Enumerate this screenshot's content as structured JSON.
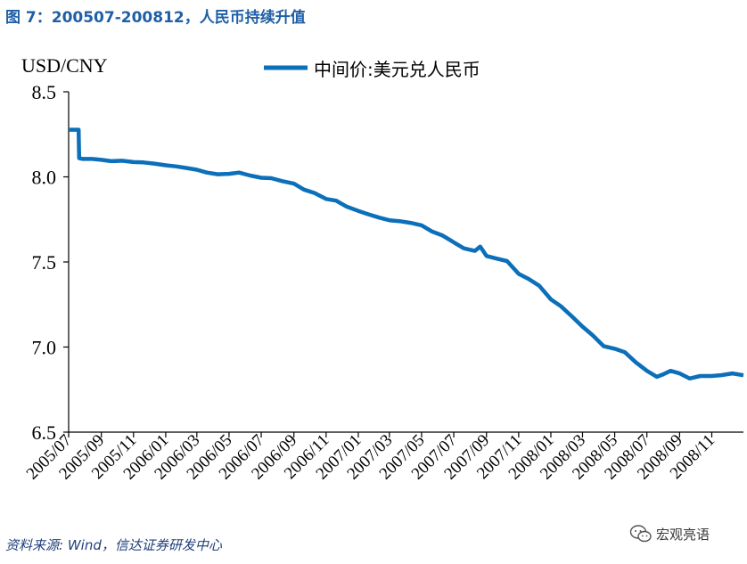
{
  "figure_title": "图 7：200507-200812，人民币持续升值",
  "source_text": "资料来源: Wind，信达证券研发中心",
  "watermark": {
    "text": "宏观亮语",
    "icon": "wechat-icon"
  },
  "colors": {
    "line": "#0b6fb9",
    "title": "#1f5fa6",
    "axis": "#000000"
  },
  "chart_data": {
    "type": "line",
    "ylabel": "USD/CNY",
    "xlabel": "",
    "ylim": [
      6.5,
      8.5
    ],
    "yticks": [
      "8.5",
      "8.0",
      "7.5",
      "7.0",
      "6.5"
    ],
    "yticks_values": [
      8.5,
      8.0,
      7.5,
      7.0,
      6.5
    ],
    "xlim": [
      "2005-07-01",
      "2008-12-31"
    ],
    "xticks": [
      "2005/07",
      "2005/09",
      "2005/11",
      "2006/01",
      "2006/03",
      "2006/05",
      "2006/07",
      "2006/09",
      "2006/11",
      "2007/01",
      "2007/03",
      "2007/05",
      "2007/07",
      "2007/09",
      "2007/11",
      "2008/01",
      "2008/03",
      "2008/05",
      "2008/07",
      "2008/09",
      "2008/11"
    ],
    "xticks_dates": [
      "2005-07-01",
      "2005-09-01",
      "2005-11-01",
      "2006-01-01",
      "2006-03-01",
      "2006-05-01",
      "2006-07-01",
      "2006-09-01",
      "2006-11-01",
      "2007-01-01",
      "2007-03-01",
      "2007-05-01",
      "2007-07-01",
      "2007-09-01",
      "2007-11-01",
      "2008-01-01",
      "2008-03-01",
      "2008-05-01",
      "2008-07-01",
      "2008-09-01",
      "2008-11-01"
    ],
    "legend_position": "top-center",
    "grid": false,
    "series": [
      {
        "name": "中间价:美元兑人民币",
        "color": "#0b6fb9",
        "points": [
          [
            "2005-07-01",
            8.277
          ],
          [
            "2005-07-20",
            8.277
          ],
          [
            "2005-07-21",
            8.11
          ],
          [
            "2005-07-28",
            8.105
          ],
          [
            "2005-08-15",
            8.105
          ],
          [
            "2005-09-01",
            8.1
          ],
          [
            "2005-09-20",
            8.092
          ],
          [
            "2005-10-10",
            8.095
          ],
          [
            "2005-11-01",
            8.087
          ],
          [
            "2005-11-20",
            8.085
          ],
          [
            "2005-12-10",
            8.078
          ],
          [
            "2006-01-01",
            8.068
          ],
          [
            "2006-01-20",
            8.062
          ],
          [
            "2006-02-10",
            8.052
          ],
          [
            "2006-03-01",
            8.042
          ],
          [
            "2006-03-20",
            8.025
          ],
          [
            "2006-04-10",
            8.015
          ],
          [
            "2006-05-01",
            8.018
          ],
          [
            "2006-05-20",
            8.025
          ],
          [
            "2006-06-10",
            8.008
          ],
          [
            "2006-07-01",
            7.995
          ],
          [
            "2006-07-20",
            7.992
          ],
          [
            "2006-08-10",
            7.975
          ],
          [
            "2006-09-01",
            7.96
          ],
          [
            "2006-09-20",
            7.925
          ],
          [
            "2006-10-10",
            7.905
          ],
          [
            "2006-11-01",
            7.87
          ],
          [
            "2006-11-20",
            7.86
          ],
          [
            "2006-12-10",
            7.825
          ],
          [
            "2007-01-01",
            7.8
          ],
          [
            "2007-01-20",
            7.78
          ],
          [
            "2007-02-10",
            7.76
          ],
          [
            "2007-03-01",
            7.745
          ],
          [
            "2007-03-20",
            7.74
          ],
          [
            "2007-04-10",
            7.73
          ],
          [
            "2007-05-01",
            7.715
          ],
          [
            "2007-05-20",
            7.68
          ],
          [
            "2007-06-10",
            7.655
          ],
          [
            "2007-07-01",
            7.615
          ],
          [
            "2007-07-20",
            7.58
          ],
          [
            "2007-08-10",
            7.565
          ],
          [
            "2007-08-20",
            7.59
          ],
          [
            "2007-09-01",
            7.535
          ],
          [
            "2007-09-20",
            7.52
          ],
          [
            "2007-10-10",
            7.505
          ],
          [
            "2007-11-01",
            7.43
          ],
          [
            "2007-11-20",
            7.4
          ],
          [
            "2007-12-10",
            7.36
          ],
          [
            "2008-01-01",
            7.28
          ],
          [
            "2008-01-20",
            7.24
          ],
          [
            "2008-02-10",
            7.18
          ],
          [
            "2008-03-01",
            7.12
          ],
          [
            "2008-03-20",
            7.07
          ],
          [
            "2008-04-10",
            7.005
          ],
          [
            "2008-05-01",
            6.99
          ],
          [
            "2008-05-20",
            6.97
          ],
          [
            "2008-06-10",
            6.91
          ],
          [
            "2008-07-01",
            6.86
          ],
          [
            "2008-07-20",
            6.825
          ],
          [
            "2008-08-01",
            6.84
          ],
          [
            "2008-08-15",
            6.86
          ],
          [
            "2008-09-01",
            6.845
          ],
          [
            "2008-09-20",
            6.815
          ],
          [
            "2008-10-10",
            6.83
          ],
          [
            "2008-11-01",
            6.83
          ],
          [
            "2008-11-20",
            6.835
          ],
          [
            "2008-12-10",
            6.845
          ],
          [
            "2008-12-31",
            6.834
          ]
        ]
      }
    ]
  }
}
